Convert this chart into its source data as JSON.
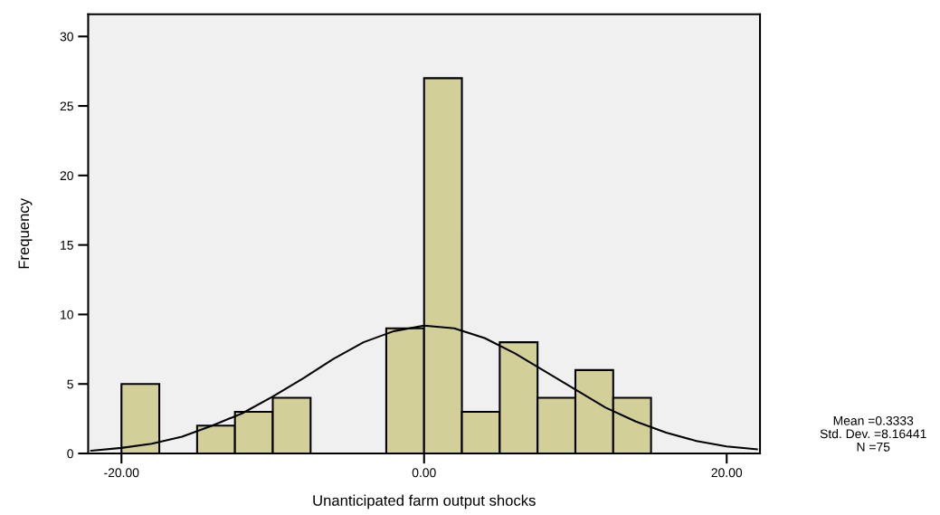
{
  "chart_data": {
    "type": "histogram",
    "xlabel": "Unanticipated farm output shocks",
    "ylabel": "Frequency",
    "bins": [
      -20,
      -17.5,
      -15,
      -12.5,
      -10,
      -7.5,
      -5,
      -2.5,
      0,
      2.5,
      5,
      7.5,
      10,
      12.5,
      15
    ],
    "values": [
      5,
      0,
      2,
      3,
      4,
      0,
      0,
      9,
      27,
      3,
      8,
      4,
      6,
      4
    ],
    "color": "#d3cf98",
    "series": [
      {
        "type": "line",
        "color": "#000000",
        "x": [
          -22,
          -20,
          -18,
          -16,
          -14,
          -12,
          -10,
          -8,
          -6,
          -4,
          -2,
          0,
          2,
          4,
          6,
          8,
          10,
          12,
          14,
          16,
          18,
          20,
          22
        ],
        "values": [
          0.2,
          0.4,
          0.7,
          1.2,
          2.0,
          2.9,
          4.1,
          5.4,
          6.8,
          8.0,
          8.8,
          9.2,
          9.0,
          8.3,
          7.2,
          5.9,
          4.6,
          3.3,
          2.3,
          1.5,
          0.9,
          0.5,
          0.3
        ]
      }
    ],
    "xlim": [
      -22.2,
      22.2
    ],
    "ylim": [
      0,
      31.6
    ],
    "xticks": [
      {
        "value": -20,
        "label": "-20.00"
      },
      {
        "value": 0,
        "label": "0.00"
      },
      {
        "value": 20,
        "label": "20.00"
      }
    ],
    "yticks": [
      0,
      5,
      10,
      15,
      20,
      25,
      30
    ],
    "grid": false,
    "legend": false,
    "annotations": [
      "Mean =0.3333",
      "Std. Dev. =8.16441",
      "N =75"
    ]
  }
}
